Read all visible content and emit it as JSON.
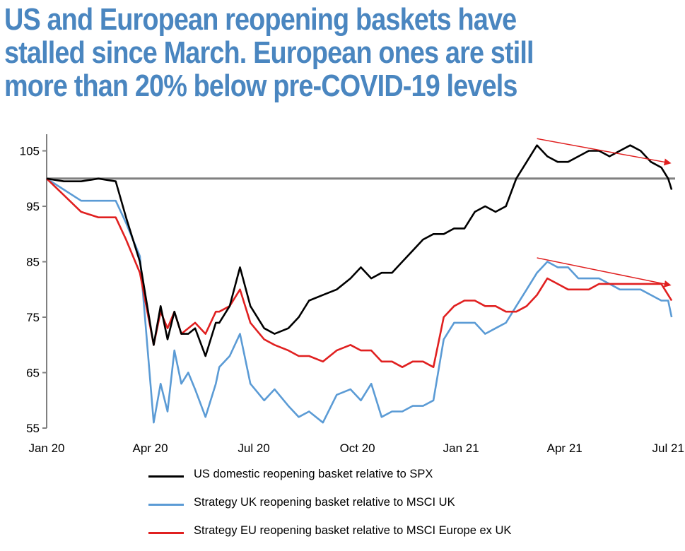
{
  "title_lines": [
    "US and European reopening baskets have",
    "stalled since March. European ones are still",
    "more than 20% below pre-COVID-19 levels"
  ],
  "colors": {
    "title": "#4a86c0",
    "series_us": "#000000",
    "series_uk": "#5b9bd5",
    "series_eu": "#e02020",
    "baseline": "#808080",
    "arrow": "#e02020",
    "axis": "#808080"
  },
  "legend": [
    "US domestic reopening basket relative to SPX",
    "Strategy UK reopening basket relative to MSCI UK",
    "Strategy EU reopening basket relative to MSCI Europe ex UK"
  ],
  "chart_data": {
    "type": "line",
    "title": "US and European reopening baskets have stalled since March. European ones are still more than 20% below pre-COVID-19 levels",
    "x_tick_labels": [
      "Jan 20",
      "Apr 20",
      "Jul 20",
      "Oct 20",
      "Jan 21",
      "Apr 21",
      "Jul 21"
    ],
    "y_tick_labels": [
      "55",
      "65",
      "75",
      "85",
      "95",
      "105"
    ],
    "y_ticks": [
      55,
      65,
      75,
      85,
      95,
      105
    ],
    "ylim": [
      55,
      108
    ],
    "x_unit": "months since Jan 2020",
    "xlim": [
      0,
      18.2
    ],
    "reference_line": 100,
    "series": [
      {
        "name": "US domestic reopening basket relative to SPX",
        "x": [
          0,
          0.5,
          1.0,
          1.5,
          2.0,
          2.3,
          2.7,
          3.1,
          3.3,
          3.5,
          3.7,
          3.9,
          4.1,
          4.3,
          4.6,
          4.9,
          5.0,
          5.3,
          5.6,
          5.9,
          6.3,
          6.6,
          7.0,
          7.3,
          7.6,
          8.0,
          8.4,
          8.8,
          9.1,
          9.4,
          9.7,
          10.0,
          10.3,
          10.6,
          10.9,
          11.2,
          11.5,
          11.8,
          12.1,
          12.4,
          12.7,
          13.0,
          13.3,
          13.6,
          13.9,
          14.2,
          14.5,
          14.8,
          15.1,
          15.4,
          15.7,
          16.0,
          16.3,
          16.6,
          16.9,
          17.2,
          17.5,
          17.8,
          18.0,
          18.1
        ],
        "values": [
          100,
          99.5,
          99.5,
          100,
          99.5,
          93,
          85,
          70,
          77,
          71,
          76,
          72,
          72,
          73,
          68,
          74,
          74,
          77,
          84,
          77,
          73,
          72,
          73,
          75,
          78,
          79,
          80,
          82,
          84,
          82,
          83,
          83,
          85,
          87,
          89,
          90,
          90,
          91,
          91,
          94,
          95,
          94,
          95,
          100,
          103,
          106,
          104,
          103,
          103,
          104,
          105,
          105,
          104,
          105,
          106,
          105,
          103,
          102,
          100,
          98
        ]
      },
      {
        "name": "Strategy UK reopening basket relative to MSCI UK",
        "x": [
          0,
          0.5,
          1.0,
          1.5,
          2.0,
          2.3,
          2.7,
          3.1,
          3.3,
          3.5,
          3.7,
          3.9,
          4.1,
          4.3,
          4.6,
          4.9,
          5.0,
          5.3,
          5.6,
          5.9,
          6.3,
          6.6,
          7.0,
          7.3,
          7.6,
          8.0,
          8.4,
          8.8,
          9.1,
          9.4,
          9.7,
          10.0,
          10.3,
          10.6,
          10.9,
          11.2,
          11.5,
          11.8,
          12.1,
          12.4,
          12.7,
          13.0,
          13.3,
          13.6,
          13.9,
          14.2,
          14.5,
          14.8,
          15.1,
          15.4,
          15.7,
          16.0,
          16.3,
          16.6,
          16.9,
          17.2,
          17.5,
          17.8,
          18.0,
          18.1
        ],
        "values": [
          100,
          98,
          96,
          96,
          96,
          92,
          86,
          56,
          63,
          58,
          69,
          63,
          65,
          62,
          57,
          63,
          66,
          68,
          72,
          63,
          60,
          62,
          59,
          57,
          58,
          56,
          61,
          62,
          60,
          63,
          57,
          58,
          58,
          59,
          59,
          60,
          71,
          74,
          74,
          74,
          72,
          73,
          74,
          77,
          80,
          83,
          85,
          84,
          84,
          82,
          82,
          82,
          81,
          80,
          80,
          80,
          79,
          78,
          78,
          75
        ]
      },
      {
        "name": "Strategy EU reopening basket relative to MSCI Europe ex UK",
        "x": [
          0,
          0.5,
          1.0,
          1.5,
          2.0,
          2.3,
          2.7,
          3.1,
          3.3,
          3.5,
          3.7,
          3.9,
          4.1,
          4.3,
          4.6,
          4.9,
          5.0,
          5.3,
          5.6,
          5.9,
          6.3,
          6.6,
          7.0,
          7.3,
          7.6,
          8.0,
          8.4,
          8.8,
          9.1,
          9.4,
          9.7,
          10.0,
          10.3,
          10.6,
          10.9,
          11.2,
          11.5,
          11.8,
          12.1,
          12.4,
          12.7,
          13.0,
          13.3,
          13.6,
          13.9,
          14.2,
          14.5,
          14.8,
          15.1,
          15.4,
          15.7,
          16.0,
          16.3,
          16.6,
          16.9,
          17.2,
          17.5,
          17.8,
          18.0,
          18.1
        ],
        "values": [
          100,
          97,
          94,
          93,
          93,
          89,
          83,
          70,
          76,
          73,
          76,
          72,
          73,
          74,
          72,
          76,
          76,
          77,
          80,
          74,
          71,
          70,
          69,
          68,
          68,
          67,
          69,
          70,
          69,
          69,
          67,
          67,
          66,
          67,
          67,
          66,
          75,
          77,
          78,
          78,
          77,
          77,
          76,
          76,
          77,
          79,
          82,
          81,
          80,
          80,
          80,
          81,
          81,
          81,
          81,
          81,
          81,
          81,
          79,
          78
        ]
      }
    ]
  }
}
